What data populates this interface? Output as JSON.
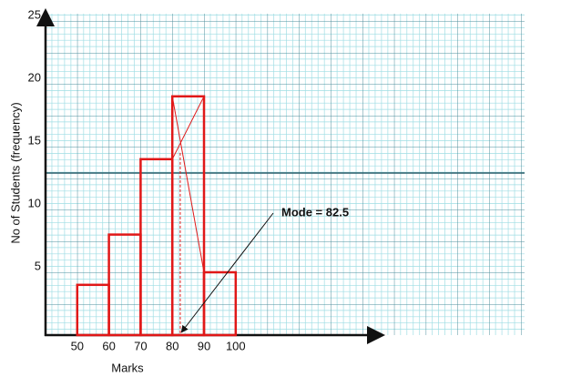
{
  "chart_data": {
    "type": "histogram",
    "x_label": "Marks",
    "y_label": "No of Students (frequency)",
    "bins": [
      50,
      60,
      70,
      80,
      90,
      100
    ],
    "counts": [
      4,
      8,
      14,
      19,
      5
    ],
    "color": "#e01818",
    "xlim": [
      40,
      146
    ],
    "xticks": [
      50,
      60,
      70,
      80,
      90,
      100
    ],
    "ylim": [
      0,
      25
    ],
    "yticks": [
      5,
      10,
      15,
      20,
      25
    ],
    "annotation": {
      "text": "Mode = 82.5",
      "value": 82.5
    }
  }
}
